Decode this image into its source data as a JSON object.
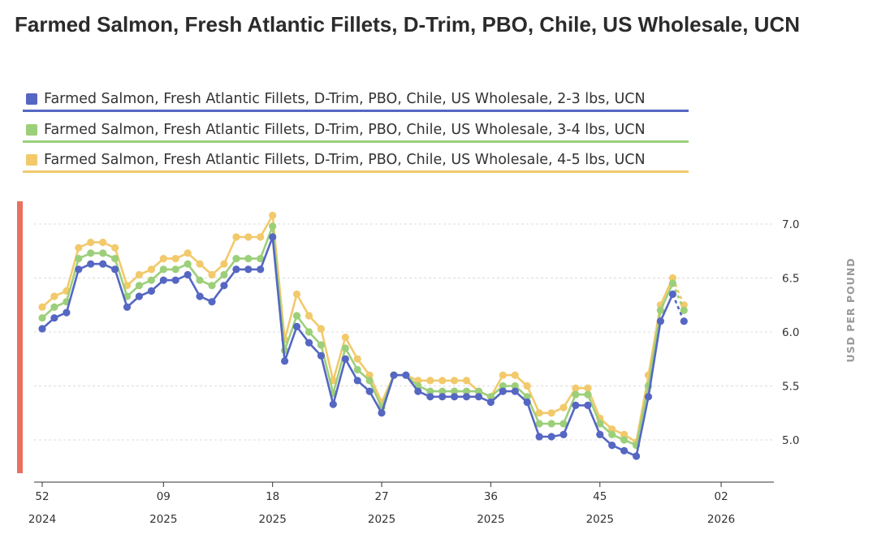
{
  "title": "Farmed Salmon, Fresh Atlantic Fillets, D-Trim, PBO, Chile, US Wholesale, UCN",
  "chart_data": {
    "type": "line",
    "title": "Farmed Salmon, Fresh Atlantic Fillets, D-Trim, PBO, Chile, US Wholesale, UCN",
    "ylabel": "USD PER POUND",
    "xlabel": "",
    "ylim": [
      4.75,
      7.1
    ],
    "y_ticks": [
      "5.0",
      "5.5",
      "6.0",
      "6.5",
      "7.0"
    ],
    "y_tick_values": [
      5.0,
      5.5,
      6.0,
      6.5,
      7.0
    ],
    "grid": true,
    "x_start_week": 52,
    "x_ticks": [
      {
        "index": 0,
        "week": "52",
        "year": "2024"
      },
      {
        "index": 10,
        "week": "09",
        "year": "2025"
      },
      {
        "index": 19,
        "week": "18",
        "year": "2025"
      },
      {
        "index": 28,
        "week": "27",
        "year": "2025"
      },
      {
        "index": 37,
        "week": "36",
        "year": "2025"
      },
      {
        "index": 46,
        "week": "45",
        "year": "2025"
      },
      {
        "index": 56,
        "week": "02",
        "year": "2026"
      }
    ],
    "forecast_from_index": 55,
    "series": [
      {
        "name": "Farmed Salmon, Fresh Atlantic Fillets, D-Trim, PBO, Chile, US Wholesale, 2-3 lbs, UCN",
        "color": "#5567c2",
        "values": [
          6.03,
          6.13,
          6.18,
          6.58,
          6.63,
          6.63,
          6.58,
          6.23,
          6.33,
          6.38,
          6.48,
          6.48,
          6.53,
          6.33,
          6.28,
          6.43,
          6.58,
          6.58,
          6.58,
          6.88,
          5.73,
          6.05,
          5.9,
          5.78,
          5.33,
          5.75,
          5.55,
          5.45,
          5.25,
          5.6,
          5.6,
          5.45,
          5.4,
          5.4,
          5.4,
          5.4,
          5.4,
          5.35,
          5.45,
          5.45,
          5.35,
          5.03,
          5.03,
          5.05,
          5.32,
          5.32,
          5.05,
          4.95,
          4.9,
          4.85,
          5.4,
          6.1,
          6.35,
          6.1
        ]
      },
      {
        "name": "Farmed Salmon, Fresh Atlantic Fillets, D-Trim, PBO, Chile, US Wholesale, 3-4 lbs, UCN",
        "color": "#9ccf7a",
        "values": [
          6.13,
          6.23,
          6.28,
          6.68,
          6.73,
          6.73,
          6.68,
          6.33,
          6.43,
          6.48,
          6.58,
          6.58,
          6.63,
          6.48,
          6.43,
          6.53,
          6.68,
          6.68,
          6.68,
          6.98,
          5.83,
          6.15,
          6.0,
          5.88,
          5.43,
          5.85,
          5.65,
          5.55,
          5.3,
          5.6,
          5.6,
          5.5,
          5.45,
          5.45,
          5.45,
          5.45,
          5.45,
          5.4,
          5.5,
          5.5,
          5.4,
          5.15,
          5.15,
          5.15,
          5.42,
          5.42,
          5.15,
          5.05,
          5.0,
          4.95,
          5.5,
          6.2,
          6.45,
          6.2
        ]
      },
      {
        "name": "Farmed Salmon, Fresh Atlantic Fillets, D-Trim, PBO, Chile, US Wholesale, 4-5 lbs, UCN",
        "color": "#f2c96b",
        "values": [
          6.23,
          6.33,
          6.38,
          6.78,
          6.83,
          6.83,
          6.78,
          6.43,
          6.53,
          6.58,
          6.68,
          6.68,
          6.73,
          6.63,
          6.53,
          6.63,
          6.88,
          6.88,
          6.88,
          7.08,
          5.93,
          6.35,
          6.15,
          6.03,
          5.55,
          5.95,
          5.75,
          5.6,
          5.35,
          5.6,
          5.6,
          5.55,
          5.55,
          5.55,
          5.55,
          5.55,
          5.45,
          5.4,
          5.6,
          5.6,
          5.5,
          5.25,
          5.25,
          5.3,
          5.48,
          5.48,
          5.2,
          5.1,
          5.05,
          4.98,
          5.6,
          6.25,
          6.5,
          6.25
        ]
      }
    ]
  }
}
